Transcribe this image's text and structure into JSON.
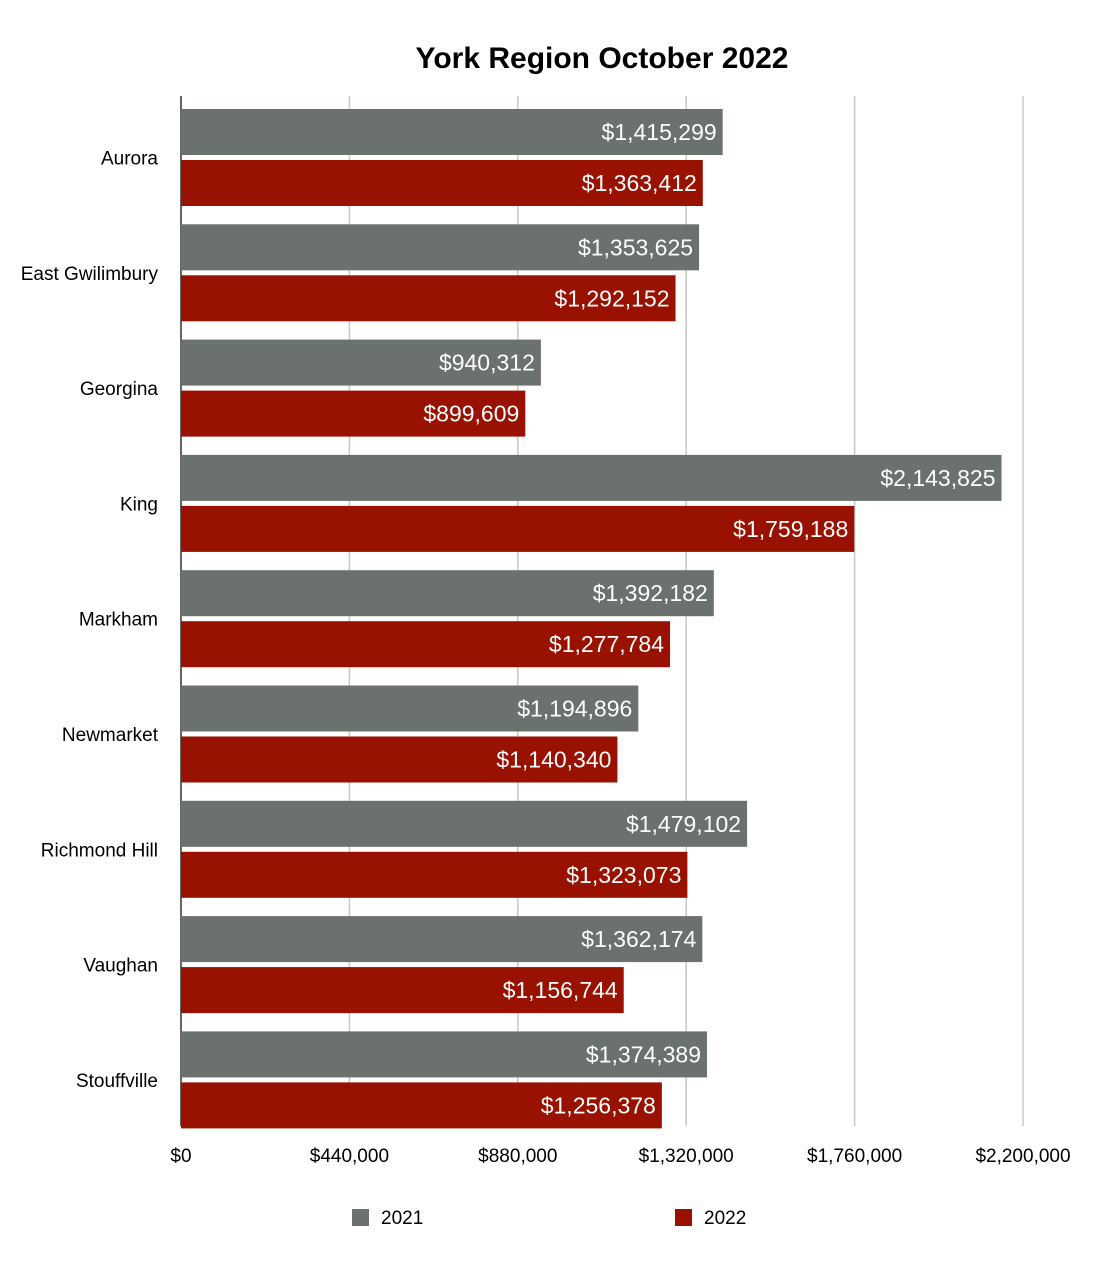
{
  "chart_data": {
    "type": "bar",
    "orientation": "horizontal",
    "title": "York Region October 2022",
    "categories": [
      "Aurora",
      "East Gwilimbury",
      "Georgina",
      "King",
      "Markham",
      "Newmarket",
      "Richmond Hill",
      "Vaughan",
      "Stouffville"
    ],
    "series": [
      {
        "name": "2021",
        "color": "#6b716d",
        "values": [
          1415299,
          1353625,
          940312,
          2143825,
          1392182,
          1194896,
          1479102,
          1362174,
          1374389
        ],
        "labels": [
          "$1,415,299",
          "$1,353,625",
          "$940,312",
          "$2,143,825",
          "$1,392,182",
          "$1,194,896",
          "$1,479,102",
          "$1,362,174",
          "$1,374,389"
        ]
      },
      {
        "name": "2022",
        "color": "#991100",
        "values": [
          1363412,
          1292152,
          899609,
          1759188,
          1277784,
          1140340,
          1323073,
          1156744,
          1256378
        ],
        "labels": [
          "$1,363,412",
          "$1,292,152",
          "$899,609",
          "$1,759,188",
          "$1,277,784",
          "$1,140,340",
          "$1,323,073",
          "$1,156,744",
          "$1,256,378"
        ]
      }
    ],
    "x_ticks": [
      0,
      440000,
      880000,
      1320000,
      1760000,
      2200000
    ],
    "x_tick_labels": [
      "$0",
      "$440,000",
      "$880,000",
      "$1,320,000",
      "$1,760,000",
      "$2,200,000"
    ],
    "xlim": [
      0,
      2200000
    ],
    "grid": "vertical",
    "legend_position": "bottom"
  }
}
